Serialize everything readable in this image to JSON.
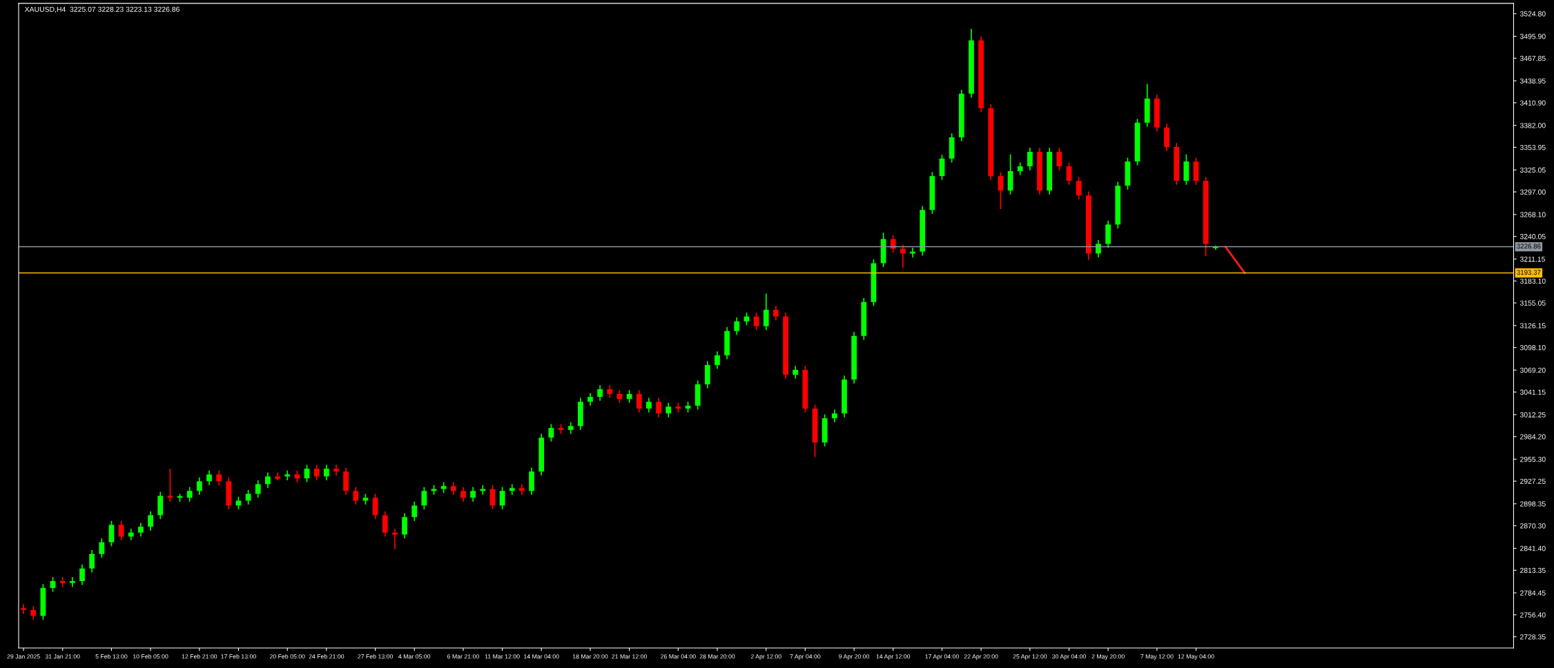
{
  "chart_data": {
    "type": "candlestick",
    "title": "XAUUSD,H4  3225.07 3228.23 3223.13 3226.86",
    "categories": [
      "29 Jan 2025",
      null,
      null,
      null,
      "31 Jan 21:00",
      null,
      null,
      null,
      null,
      "5 Feb 13:00",
      null,
      null,
      null,
      "10 Feb 05:00",
      null,
      null,
      null,
      null,
      "12 Feb 21:00",
      null,
      null,
      null,
      "17 Feb 13:00",
      null,
      null,
      null,
      null,
      "20 Feb 05:00",
      null,
      null,
      null,
      "24 Feb 21:00",
      null,
      null,
      null,
      null,
      "27 Feb 13:00",
      null,
      null,
      null,
      "4 Mar 05:00",
      null,
      null,
      null,
      null,
      "6 Mar 21:00",
      null,
      null,
      null,
      "11 Mar 12:00",
      null,
      null,
      null,
      "14 Mar 04:00",
      null,
      null,
      null,
      null,
      "18 Mar 20:00",
      null,
      null,
      null,
      "21 Mar 12:00",
      null,
      null,
      null,
      null,
      "26 Mar 04:00",
      null,
      null,
      null,
      "28 Mar 20:00",
      null,
      null,
      null,
      null,
      "2 Apr 12:00",
      null,
      null,
      null,
      "7 Apr 04:00",
      null,
      null,
      null,
      null,
      "9 Apr 20:00",
      null,
      null,
      null,
      "14 Apr 12:00",
      null,
      null,
      null,
      null,
      "17 Apr 04:00",
      null,
      null,
      null,
      "22 Apr 20:00",
      null,
      null,
      null,
      null,
      "25 Apr 12:00",
      null,
      null,
      null,
      "30 Apr 04:00",
      null,
      null,
      null,
      "2 May 20:00",
      null,
      null,
      null,
      null,
      "7 May 12:00",
      null,
      null,
      null,
      "12 May 04:00",
      null,
      null,
      null,
      null,
      null,
      null,
      null,
      null,
      null,
      null,
      null,
      null,
      null,
      null,
      null,
      null,
      null,
      null,
      null,
      null,
      null,
      null,
      null,
      null,
      null,
      null,
      null,
      null,
      null,
      null,
      null,
      null
    ],
    "ohlc": [
      [
        2765.0,
        2770.0,
        2757.4,
        2762.4
      ],
      [
        2762.4,
        2767.4,
        2749.9,
        2754.9
      ],
      [
        2754.9,
        2795.8,
        2749.9,
        2790.8
      ],
      [
        2790.8,
        2804.5,
        2785.8,
        2799.5
      ],
      [
        2799.5,
        2804.5,
        2792.0,
        2797.0
      ],
      [
        2797.0,
        2804.5,
        2792.0,
        2799.5
      ],
      [
        2799.5,
        2820.6,
        2794.5,
        2815.6
      ],
      [
        2815.6,
        2839.2,
        2810.6,
        2834.2
      ],
      [
        2834.2,
        2854.1,
        2829.2,
        2849.1
      ],
      [
        2849.1,
        2876.4,
        2844.1,
        2871.4
      ],
      [
        2871.4,
        2876.4,
        2851.5,
        2856.5
      ],
      [
        2856.5,
        2866.4,
        2851.5,
        2861.4
      ],
      [
        2861.4,
        2873.9,
        2856.4,
        2868.9
      ],
      [
        2868.9,
        2888.7,
        2863.9,
        2883.7
      ],
      [
        2883.7,
        2913.5,
        2878.7,
        2908.5
      ],
      [
        2908.5,
        2943.2,
        2901.0,
        2906.0
      ],
      [
        2906.0,
        2911.0,
        2901.0,
        2908.0
      ],
      [
        2906.0,
        2919.7,
        2901.0,
        2914.7
      ],
      [
        2914.7,
        2932.1,
        2909.7,
        2927.1
      ],
      [
        2927.1,
        2940.8,
        2922.1,
        2935.8
      ],
      [
        2935.8,
        2940.8,
        2922.1,
        2927.1
      ],
      [
        2927.1,
        2932.1,
        2891.1,
        2896.1
      ],
      [
        2896.1,
        2907.3,
        2891.1,
        2902.3
      ],
      [
        2902.3,
        2916.0,
        2897.3,
        2911.0
      ],
      [
        2911.0,
        2928.4,
        2906.0,
        2923.4
      ],
      [
        2923.4,
        2938.3,
        2918.4,
        2933.3
      ],
      [
        2933.3,
        2938.3,
        2928.3,
        2930.3
      ],
      [
        2933.3,
        2940.8,
        2928.3,
        2935.8
      ],
      [
        2935.8,
        2940.8,
        2925.8,
        2930.8
      ],
      [
        2930.8,
        2948.2,
        2925.8,
        2943.2
      ],
      [
        2943.2,
        2948.2,
        2928.3,
        2933.3
      ],
      [
        2933.3,
        2948.2,
        2928.3,
        2943.2
      ],
      [
        2943.2,
        2948.2,
        2934.5,
        2939.5
      ],
      [
        2939.5,
        2944.5,
        2909.7,
        2914.7
      ],
      [
        2914.7,
        2919.7,
        2897.3,
        2902.3
      ],
      [
        2902.3,
        2911.0,
        2897.3,
        2906.0
      ],
      [
        2906.0,
        2911.0,
        2878.7,
        2883.7
      ],
      [
        2883.7,
        2888.7,
        2856.4,
        2861.4
      ],
      [
        2861.4,
        2866.4,
        2840.4,
        2859.0
      ],
      [
        2859.0,
        2886.3,
        2854.0,
        2881.3
      ],
      [
        2881.3,
        2901.1,
        2876.3,
        2896.1
      ],
      [
        2896.1,
        2919.7,
        2891.1,
        2914.7
      ],
      [
        2914.7,
        2922.2,
        2909.7,
        2917.2
      ],
      [
        2917.2,
        2925.9,
        2912.2,
        2920.9
      ],
      [
        2920.9,
        2925.9,
        2909.7,
        2914.7
      ],
      [
        2914.7,
        2919.7,
        2901.0,
        2906.0
      ],
      [
        2906.0,
        2919.7,
        2901.0,
        2914.7
      ],
      [
        2914.7,
        2922.2,
        2909.7,
        2917.2
      ],
      [
        2917.2,
        2922.2,
        2891.1,
        2896.1
      ],
      [
        2896.1,
        2919.7,
        2891.1,
        2914.7
      ],
      [
        2914.7,
        2923.4,
        2909.7,
        2918.4
      ],
      [
        2918.4,
        2923.4,
        2909.7,
        2914.7
      ],
      [
        2914.7,
        2944.5,
        2909.7,
        2939.5
      ],
      [
        2939.5,
        2987.8,
        2934.5,
        2982.8
      ],
      [
        2982.8,
        3000.2,
        2977.8,
        2995.2
      ],
      [
        2995.2,
        3000.2,
        2987.7,
        2992.7
      ],
      [
        2992.7,
        3002.7,
        2987.7,
        2997.7
      ],
      [
        2997.7,
        3033.7,
        2992.7,
        3028.7
      ],
      [
        3028.7,
        3039.9,
        3023.7,
        3034.9
      ],
      [
        3034.9,
        3049.8,
        3029.9,
        3044.8
      ],
      [
        3044.8,
        3049.8,
        3033.6,
        3038.6
      ],
      [
        3038.6,
        3043.6,
        3027.4,
        3032.4
      ],
      [
        3032.4,
        3043.6,
        3027.4,
        3038.6
      ],
      [
        3038.6,
        3043.6,
        3015.0,
        3020.0
      ],
      [
        3020.0,
        3033.7,
        3015.0,
        3028.7
      ],
      [
        3028.7,
        3033.7,
        3008.8,
        3013.8
      ],
      [
        3013.8,
        3027.5,
        3008.8,
        3022.5
      ],
      [
        3022.5,
        3027.5,
        3015.0,
        3020.0
      ],
      [
        3020.0,
        3028.7,
        3015.0,
        3023.7
      ],
      [
        3023.7,
        3056.0,
        3018.7,
        3051.0
      ],
      [
        3051.0,
        3080.7,
        3046.0,
        3075.7
      ],
      [
        3075.7,
        3093.1,
        3070.7,
        3088.1
      ],
      [
        3088.1,
        3124.1,
        3083.1,
        3119.1
      ],
      [
        3119.1,
        3136.5,
        3114.1,
        3131.5
      ],
      [
        3131.5,
        3142.7,
        3126.5,
        3137.7
      ],
      [
        3137.7,
        3142.7,
        3120.3,
        3125.3
      ],
      [
        3125.3,
        3167.0,
        3120.3,
        3146.3
      ],
      [
        3146.3,
        3151.3,
        3132.7,
        3137.7
      ],
      [
        3137.7,
        3142.7,
        3058.3,
        3063.3
      ],
      [
        3063.3,
        3074.5,
        3058.3,
        3069.5
      ],
      [
        3069.5,
        3074.5,
        3015.0,
        3020.0
      ],
      [
        3020.0,
        3025.0,
        2958.0,
        2976.6
      ],
      [
        2976.6,
        3012.6,
        2971.6,
        3007.6
      ],
      [
        3007.6,
        3018.8,
        3002.6,
        3013.8
      ],
      [
        3013.8,
        3062.1,
        3008.8,
        3057.1
      ],
      [
        3057.1,
        3117.9,
        3052.1,
        3112.9
      ],
      [
        3112.9,
        3161.2,
        3107.9,
        3156.2
      ],
      [
        3156.2,
        3210.8,
        3151.2,
        3205.8
      ],
      [
        3205.8,
        3245.0,
        3200.8,
        3236.7
      ],
      [
        3236.7,
        3241.7,
        3219.4,
        3224.4
      ],
      [
        3224.4,
        3229.4,
        3200.0,
        3218.2
      ],
      [
        3218.2,
        3225.6,
        3213.2,
        3220.6
      ],
      [
        3220.6,
        3278.9,
        3215.6,
        3273.9
      ],
      [
        3273.9,
        3322.2,
        3268.9,
        3317.2
      ],
      [
        3317.2,
        3344.5,
        3312.2,
        3339.5
      ],
      [
        3339.5,
        3371.8,
        3334.5,
        3366.8
      ],
      [
        3366.8,
        3427.5,
        3361.8,
        3422.5
      ],
      [
        3422.5,
        3505.5,
        3417.5,
        3490.7
      ],
      [
        3490.7,
        3495.7,
        3399.0,
        3404.0
      ],
      [
        3404.0,
        3409.0,
        3312.2,
        3317.2
      ],
      [
        3317.2,
        3322.2,
        3275.0,
        3298.7
      ],
      [
        3298.7,
        3345.0,
        3293.7,
        3323.4
      ],
      [
        3323.4,
        3334.6,
        3318.4,
        3329.6
      ],
      [
        3329.6,
        3353.2,
        3324.6,
        3348.2
      ],
      [
        3348.2,
        3353.2,
        3293.7,
        3298.7
      ],
      [
        3298.7,
        3353.2,
        3293.7,
        3348.2
      ],
      [
        3348.2,
        3353.2,
        3324.6,
        3329.6
      ],
      [
        3329.6,
        3334.6,
        3306.1,
        3311.1
      ],
      [
        3311.1,
        3316.1,
        3287.5,
        3292.5
      ],
      [
        3292.5,
        3297.5,
        3210.0,
        3218.2
      ],
      [
        3218.2,
        3235.5,
        3213.2,
        3230.5
      ],
      [
        3230.5,
        3260.3,
        3225.5,
        3255.3
      ],
      [
        3255.3,
        3309.9,
        3250.3,
        3304.9
      ],
      [
        3304.9,
        3340.8,
        3299.9,
        3335.8
      ],
      [
        3335.8,
        3390.4,
        3330.8,
        3385.4
      ],
      [
        3385.4,
        3435.0,
        3380.4,
        3416.3
      ],
      [
        3416.3,
        3421.3,
        3374.2,
        3379.2
      ],
      [
        3379.2,
        3384.2,
        3349.4,
        3354.4
      ],
      [
        3354.4,
        3359.4,
        3306.1,
        3311.1
      ],
      [
        3311.1,
        3345.0,
        3306.1,
        3335.8
      ],
      [
        3335.8,
        3340.8,
        3306.1,
        3311.1
      ],
      [
        3311.1,
        3316.1,
        3215.0,
        3230.5
      ],
      [
        3225.07,
        3228.23,
        3223.13,
        3226.86
      ],
      null,
      null,
      null,
      null,
      null,
      null,
      null,
      null,
      null,
      null,
      null,
      null,
      null,
      null,
      null,
      null,
      null,
      null,
      null,
      null,
      null,
      null,
      null,
      null,
      null,
      null,
      null,
      null,
      null,
      null
    ],
    "colors": [
      "#ff0000",
      "#ff0000",
      "#00ff00",
      "#00ff00",
      "#ff0000",
      "#00ff00",
      "#00ff00",
      "#00ff00",
      "#00ff00",
      "#00ff00",
      "#ff0000",
      "#00ff00",
      "#00ff00",
      "#00ff00",
      "#00ff00",
      "#ff0000",
      "#00ff00",
      "#00ff00",
      "#00ff00",
      "#00ff00",
      "#ff0000",
      "#ff0000",
      "#00ff00",
      "#00ff00",
      "#00ff00",
      "#00ff00",
      "#ff0000",
      "#00ff00",
      "#ff0000",
      "#00ff00",
      "#ff0000",
      "#00ff00",
      "#ff0000",
      "#ff0000",
      "#ff0000",
      "#00ff00",
      "#ff0000",
      "#ff0000",
      "#ff0000",
      "#00ff00",
      "#00ff00",
      "#00ff00",
      "#00ff00",
      "#00ff00",
      "#ff0000",
      "#ff0000",
      "#00ff00",
      "#00ff00",
      "#ff0000",
      "#00ff00",
      "#00ff00",
      "#ff0000",
      "#00ff00",
      "#00ff00",
      "#00ff00",
      "#ff0000",
      "#00ff00",
      "#00ff00",
      "#00ff00",
      "#00ff00",
      "#ff0000",
      "#ff0000",
      "#00ff00",
      "#ff0000",
      "#00ff00",
      "#ff0000",
      "#00ff00",
      "#ff0000",
      "#00ff00",
      "#00ff00",
      "#00ff00",
      "#00ff00",
      "#00ff00",
      "#00ff00",
      "#00ff00",
      "#ff0000",
      "#00ff00",
      "#ff0000",
      "#ff0000",
      "#00ff00",
      "#ff0000",
      "#ff0000",
      "#00ff00",
      "#00ff00",
      "#00ff00",
      "#00ff00",
      "#00ff00",
      "#00ff00",
      "#00ff00",
      "#ff0000",
      "#ff0000",
      "#00ff00",
      "#00ff00",
      "#00ff00",
      "#00ff00",
      "#00ff00",
      "#00ff00",
      "#00ff00",
      "#ff0000",
      "#ff0000",
      "#ff0000",
      "#00ff00",
      "#00ff00",
      "#00ff00",
      "#ff0000",
      "#00ff00",
      "#ff0000",
      "#ff0000",
      "#ff0000",
      "#ff0000",
      "#00ff00",
      "#00ff00",
      "#00ff00",
      "#00ff00",
      "#00ff00",
      "#00ff00",
      "#ff0000",
      "#ff0000",
      "#ff0000",
      "#00ff00",
      "#ff0000",
      "#ff0000",
      "#00ff00",
      null,
      null,
      null,
      null,
      null,
      null,
      null,
      null,
      null,
      null,
      null,
      null,
      null,
      null,
      null,
      null,
      null,
      null,
      null,
      null,
      null,
      null,
      null,
      null,
      null,
      null,
      null,
      null,
      null,
      null
    ],
    "series": [
      {
        "type": "line",
        "color": "#ff1a1a",
        "values": [
          null,
          null,
          null,
          null,
          null,
          null,
          null,
          null,
          null,
          null,
          null,
          null,
          null,
          null,
          null,
          null,
          null,
          null,
          null,
          null,
          null,
          null,
          null,
          null,
          null,
          null,
          null,
          null,
          null,
          null,
          null,
          null,
          null,
          null,
          null,
          null,
          null,
          null,
          null,
          null,
          null,
          null,
          null,
          null,
          null,
          null,
          null,
          null,
          null,
          null,
          null,
          null,
          null,
          null,
          null,
          null,
          null,
          null,
          null,
          null,
          null,
          null,
          null,
          null,
          null,
          null,
          null,
          null,
          null,
          null,
          null,
          null,
          null,
          null,
          null,
          null,
          null,
          null,
          null,
          null,
          null,
          null,
          null,
          null,
          null,
          null,
          null,
          null,
          null,
          null,
          null,
          null,
          null,
          null,
          null,
          null,
          null,
          null,
          null,
          null,
          null,
          null,
          null,
          null,
          null,
          null,
          null,
          null,
          null,
          null,
          null,
          null,
          null,
          null,
          null,
          null,
          null,
          null,
          null,
          null,
          null,
          null,
          null,
          3227,
          null,
          3193,
          null,
          null,
          null,
          null,
          null,
          null,
          null,
          null,
          null,
          null,
          null,
          null,
          null,
          null,
          null,
          null,
          null,
          null,
          null,
          null,
          null,
          null,
          null,
          null,
          null,
          null,
          null
        ]
      }
    ],
    "ref_lines": [
      {
        "axis": "y",
        "value": 3226.86,
        "label": "3226.86",
        "color": "#8c96a0"
      },
      {
        "axis": "y",
        "value": 3193.37,
        "label": "3193.37",
        "color": "#ffc000"
      }
    ],
    "ylim": [
      2714,
      3538
    ],
    "yticks": [
      {
        "value": 3524.8,
        "label": "3524.80"
      },
      {
        "value": 3495.9,
        "label": "3495.90"
      },
      {
        "value": 3467.85,
        "label": "3467.85"
      },
      {
        "value": 3438.95,
        "label": "3438.95"
      },
      {
        "value": 3410.9,
        "label": "3410.90"
      },
      {
        "value": 3382.0,
        "label": "3382.00"
      },
      {
        "value": 3353.95,
        "label": "3353.95"
      },
      {
        "value": 3325.05,
        "label": "3325.05"
      },
      {
        "value": 3297.0,
        "label": "3297.00"
      },
      {
        "value": 3268.1,
        "label": "3268.10"
      },
      {
        "value": 3240.05,
        "label": "3240.05"
      },
      {
        "value": 3211.15,
        "label": "3211.15"
      },
      {
        "value": 3183.1,
        "label": "3183.10"
      },
      {
        "value": 3155.05,
        "label": "3155.05"
      },
      {
        "value": 3126.15,
        "label": "3126.15"
      },
      {
        "value": 3098.1,
        "label": "3098.10"
      },
      {
        "value": 3069.2,
        "label": "3069.20"
      },
      {
        "value": 3041.15,
        "label": "3041.15"
      },
      {
        "value": 3012.25,
        "label": "3012.25"
      },
      {
        "value": 2984.2,
        "label": "2984.20"
      },
      {
        "value": 2955.3,
        "label": "2955.30"
      },
      {
        "value": 2927.25,
        "label": "2927.25"
      },
      {
        "value": 2898.35,
        "label": "2898.35"
      },
      {
        "value": 2870.3,
        "label": "2870.30"
      },
      {
        "value": 2841.4,
        "label": "2841.40"
      },
      {
        "value": 2813.35,
        "label": "2813.35"
      },
      {
        "value": 2784.45,
        "label": "2784.45"
      },
      {
        "value": 2756.4,
        "label": "2756.40"
      },
      {
        "value": 2728.35,
        "label": "2728.35"
      }
    ],
    "grid": false,
    "legend": false
  }
}
